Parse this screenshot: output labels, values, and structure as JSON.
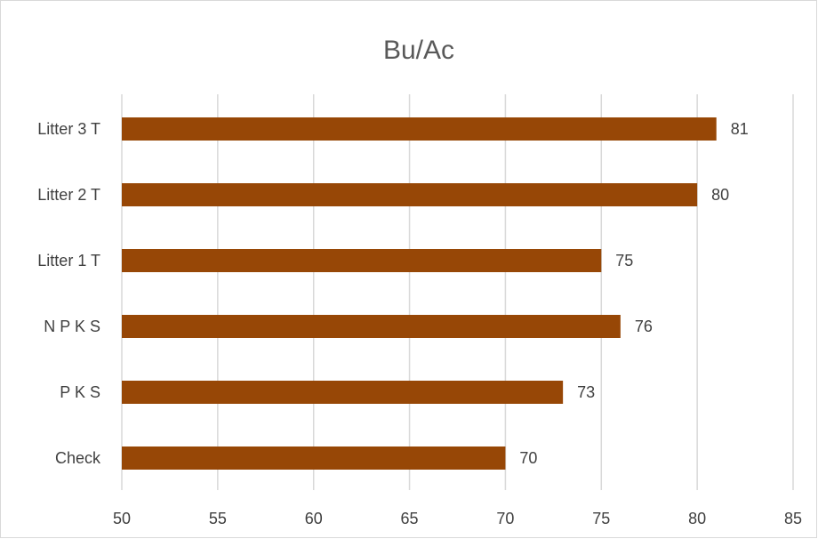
{
  "chart_data": {
    "type": "bar",
    "orientation": "horizontal",
    "title": "Bu/Ac",
    "categories": [
      "Check",
      "P K S",
      "N P K S",
      "Litter 1 T",
      "Litter 2 T",
      "Litter 3 T"
    ],
    "values": [
      70,
      73,
      76,
      75,
      80,
      81
    ],
    "xlim": [
      50,
      85
    ],
    "xticks": [
      50,
      55,
      60,
      65,
      70,
      75,
      80,
      85
    ],
    "grid": true,
    "legend": "none",
    "bar_color": "#974706",
    "data_labels": true
  }
}
